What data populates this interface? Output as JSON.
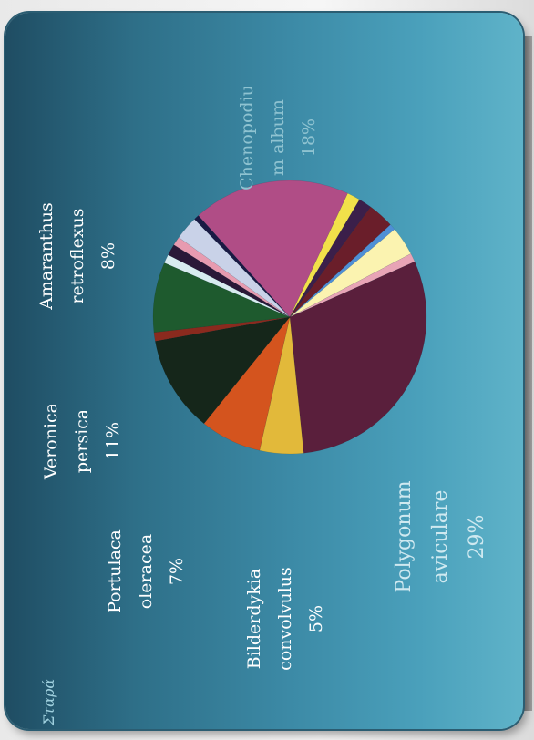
{
  "corner_text": "Σταρά",
  "chart_data": {
    "type": "pie",
    "labels": {
      "chenopodium": [
        "Chenopodiu",
        "m album",
        "18%"
      ],
      "amaranthus": [
        "Amaranthus",
        "retroflexus",
        "8%"
      ],
      "veronica": [
        "Veronica",
        "persica",
        "11%"
      ],
      "portulaca": [
        "Portulaca",
        "oleracea",
        "7%"
      ],
      "bilderdykia": [
        "Bilderdykia",
        "convolvulus",
        "5%"
      ],
      "polygonum": [
        "Polygonum",
        "aviculare",
        "29%"
      ]
    },
    "slices": [
      {
        "label": "Chenopodium album",
        "value": 18,
        "color": "#b04d86"
      },
      {
        "label": "",
        "value": 1.5,
        "color": "#f2e14a"
      },
      {
        "label": "",
        "value": 1.5,
        "color": "#3b1f4a"
      },
      {
        "label": "",
        "value": 3,
        "color": "#6a1e2a"
      },
      {
        "label": "",
        "value": 0.7,
        "color": "#4f8fd6"
      },
      {
        "label": "",
        "value": 3.3,
        "color": "#fbf3b0"
      },
      {
        "label": "",
        "value": 1,
        "color": "#e8a4b6"
      },
      {
        "label": "Polygonum aviculare",
        "value": 29,
        "color": "#5a1f3c"
      },
      {
        "label": "Bilderdykia convolvulus",
        "value": 5,
        "color": "#e2b93a"
      },
      {
        "label": "Portulaca oleracea",
        "value": 7,
        "color": "#d4541e"
      },
      {
        "label": "Veronica persica",
        "value": 11,
        "color": "#15261a"
      },
      {
        "label": "",
        "value": 1,
        "color": "#8a2a1e"
      },
      {
        "label": "Amaranthus retroflexus",
        "value": 8,
        "color": "#1e5a2e"
      },
      {
        "label": "",
        "value": 1,
        "color": "#d8ecf0"
      },
      {
        "label": "",
        "value": 1.3,
        "color": "#2a1838"
      },
      {
        "label": "",
        "value": 1,
        "color": "#e79bb0"
      },
      {
        "label": "",
        "value": 2.7,
        "color": "#c9d2e8"
      },
      {
        "label": "",
        "value": 0.6,
        "color": "#1a1a44"
      }
    ]
  }
}
